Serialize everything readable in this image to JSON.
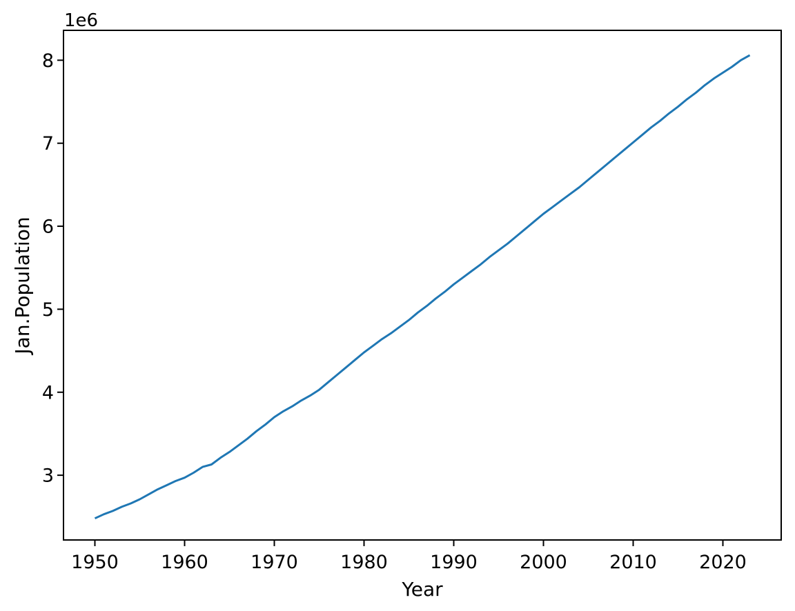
{
  "figure": {
    "background_color": "#ffffff",
    "spine_color": "#000000",
    "text_color": "#000000"
  },
  "chart_data": {
    "type": "line",
    "title": "",
    "xlabel": "Year",
    "ylabel": "Jan.Population",
    "offset_text": "1e6",
    "unit": "millions (values shown against 1e6 axis multiplier)",
    "legend": "none",
    "grid": false,
    "line_color": "#1f77b4",
    "xlim": [
      1946.5,
      2026.5
    ],
    "ylim": [
      2.22,
      8.36
    ],
    "xticks": [
      1950,
      1960,
      1970,
      1980,
      1990,
      2000,
      2010,
      2020
    ],
    "yticks": [
      3,
      4,
      5,
      6,
      7,
      8
    ],
    "x": [
      1950,
      1951,
      1952,
      1953,
      1954,
      1955,
      1956,
      1957,
      1958,
      1959,
      1960,
      1961,
      1962,
      1963,
      1964,
      1965,
      1966,
      1967,
      1968,
      1969,
      1970,
      1971,
      1972,
      1973,
      1974,
      1975,
      1976,
      1977,
      1978,
      1979,
      1980,
      1981,
      1982,
      1983,
      1984,
      1985,
      1986,
      1987,
      1988,
      1989,
      1990,
      1991,
      1992,
      1993,
      1994,
      1995,
      1996,
      1997,
      1998,
      1999,
      2000,
      2001,
      2002,
      2003,
      2004,
      2005,
      2006,
      2007,
      2008,
      2009,
      2010,
      2011,
      2012,
      2013,
      2014,
      2015,
      2016,
      2017,
      2018,
      2019,
      2020,
      2021,
      2022,
      2023
    ],
    "series": [
      {
        "name": "Jan.Population",
        "values": [
          2.48,
          2.53,
          2.57,
          2.62,
          2.66,
          2.71,
          2.77,
          2.83,
          2.88,
          2.93,
          2.97,
          3.03,
          3.1,
          3.13,
          3.21,
          3.28,
          3.36,
          3.44,
          3.53,
          3.61,
          3.7,
          3.77,
          3.83,
          3.9,
          3.96,
          4.03,
          4.12,
          4.21,
          4.3,
          4.39,
          4.48,
          4.56,
          4.64,
          4.71,
          4.79,
          4.87,
          4.96,
          5.04,
          5.13,
          5.21,
          5.3,
          5.38,
          5.46,
          5.54,
          5.63,
          5.71,
          5.79,
          5.88,
          5.97,
          6.06,
          6.15,
          6.23,
          6.31,
          6.39,
          6.47,
          6.56,
          6.65,
          6.74,
          6.83,
          6.92,
          7.01,
          7.1,
          7.19,
          7.27,
          7.36,
          7.44,
          7.53,
          7.61,
          7.7,
          7.78,
          7.85,
          7.92,
          8.0,
          8.06
        ]
      }
    ]
  }
}
